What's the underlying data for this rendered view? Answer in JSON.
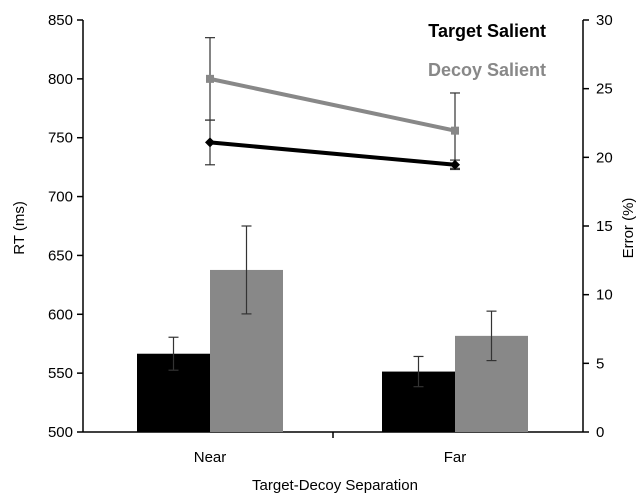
{
  "chart_data": {
    "type": "bar+line",
    "xlabel": "Target-Decoy Separation",
    "categories": [
      "Near",
      "Far"
    ],
    "y_left": {
      "label": "RT (ms)",
      "range": [
        500,
        850
      ],
      "ticks": [
        "500",
        "550",
        "600",
        "650",
        "700",
        "750",
        "800",
        "850"
      ]
    },
    "y_right": {
      "label": "Error (%)",
      "range": [
        0,
        30
      ],
      "ticks": [
        "0",
        "5",
        "10",
        "15",
        "20",
        "25",
        "30"
      ]
    },
    "legend_position": "top-right",
    "series": [
      {
        "name": "Target Salient",
        "color": "#000000",
        "rt_line": [
          746,
          727
        ],
        "rt_error": [
          19,
          4
        ],
        "error_bars": [
          5.7,
          4.4
        ],
        "error_bar_err": [
          1.2,
          1.1
        ]
      },
      {
        "name": "Decoy Salient",
        "color": "#888888",
        "rt_line": [
          800,
          756
        ],
        "rt_error": [
          35,
          32
        ],
        "error_bars": [
          11.8,
          7.0
        ],
        "error_bar_err": [
          3.2,
          1.8
        ]
      }
    ]
  }
}
